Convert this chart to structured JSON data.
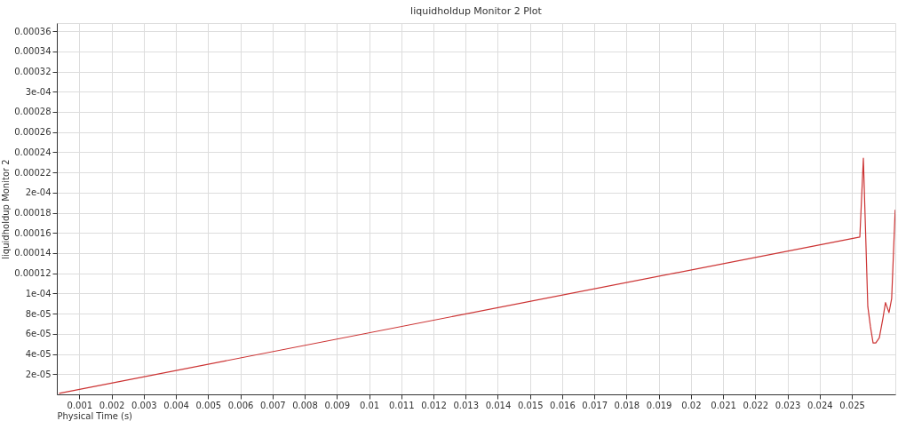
{
  "chart_data": {
    "type": "line",
    "title": "liquidholdup Monitor 2 Plot",
    "xlabel": "Physical Time (s)",
    "ylabel": "liquidholdup Monitor 2",
    "series": [
      {
        "color": "#cc3333",
        "x": [
          0.000368,
          0.025247,
          0.025357,
          0.025495,
          0.025577,
          0.025659,
          0.025742,
          0.025852,
          0.025962,
          0.026044,
          0.026154,
          0.026236,
          0.026346
        ],
        "values": [
          1e-06,
          0.000156,
          0.000234,
          8.7e-05,
          6.7e-05,
          5.1e-05,
          5.1e-05,
          5.6e-05,
          7.5e-05,
          9.1e-05,
          8.1e-05,
          9.5e-05,
          0.000183
        ]
      }
    ],
    "xlim": [
      0.0003,
      0.02635
    ],
    "ylim": [
      0,
      0.000368
    ],
    "xticks": [
      0.001,
      0.002,
      0.003,
      0.004,
      0.005,
      0.006,
      0.007,
      0.008,
      0.009,
      0.01,
      0.011,
      0.012,
      0.013,
      0.014,
      0.015,
      0.016,
      0.017,
      0.018,
      0.019,
      0.02,
      0.021,
      0.022,
      0.023,
      0.024,
      0.025
    ],
    "yticks": [
      {
        "value": 2e-05,
        "label": "2e-05"
      },
      {
        "value": 4e-05,
        "label": "4e-05"
      },
      {
        "value": 6e-05,
        "label": "6e-05"
      },
      {
        "value": 8e-05,
        "label": "8e-05"
      },
      {
        "value": 0.0001,
        "label": "1e-04"
      },
      0.00012,
      0.00014,
      0.00016,
      0.00018,
      {
        "value": 0.0002,
        "label": "2e-04"
      },
      0.00022,
      0.00024,
      0.00026,
      0.00028,
      {
        "value": 0.0003,
        "label": "3e-04"
      },
      0.00032,
      0.00034,
      0.00036
    ],
    "grid": true,
    "marker": "none",
    "line_style": "solid",
    "legend": false
  }
}
